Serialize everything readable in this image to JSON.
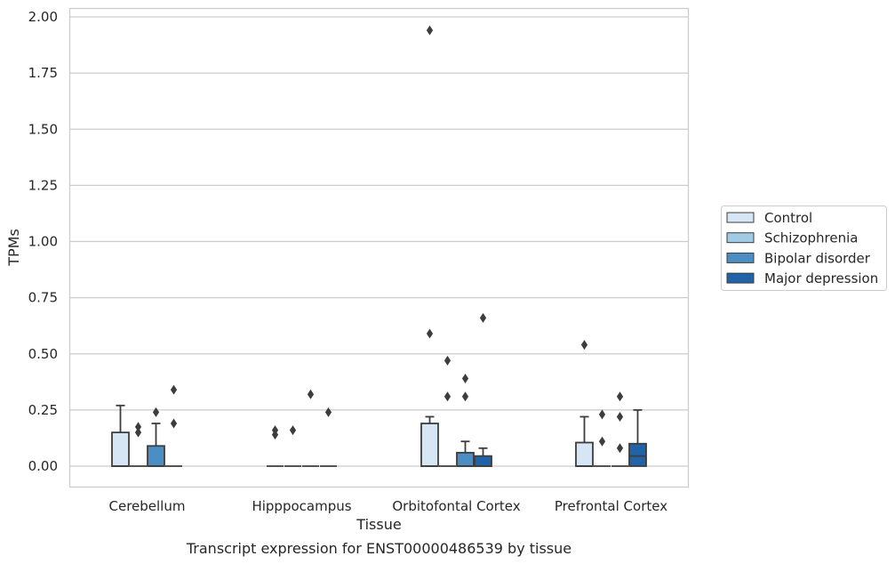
{
  "chart_data": {
    "type": "box",
    "title": "Transcript expression for ENST00000486539 by tissue",
    "xlabel": "Tissue",
    "ylabel": "TPMs",
    "ylim": [
      -0.09,
      2.04
    ],
    "yticks": [
      0.0,
      0.25,
      0.5,
      0.75,
      1.0,
      1.25,
      1.5,
      1.75,
      2.0
    ],
    "ytick_labels": [
      "0.00",
      "0.25",
      "0.50",
      "0.75",
      "1.00",
      "1.25",
      "1.50",
      "1.75",
      "2.00"
    ],
    "grid": true,
    "legend_position": "right",
    "categories": [
      "Cerebellum",
      "Hipppocampus",
      "Orbitofontal Cortex",
      "Prefrontal Cortex"
    ],
    "series": [
      {
        "name": "Control",
        "color": "#d6e6f4",
        "boxes": [
          {
            "q1": 0.0,
            "median": 0.0,
            "q3": 0.15,
            "whisker_low": 0.0,
            "whisker_high": 0.27,
            "outliers": []
          },
          {
            "q1": 0.0,
            "median": 0.0,
            "q3": 0.0,
            "whisker_low": 0.0,
            "whisker_high": 0.0,
            "outliers": [
              0.14,
              0.16
            ]
          },
          {
            "q1": 0.0,
            "median": 0.0,
            "q3": 0.19,
            "whisker_low": 0.0,
            "whisker_high": 0.22,
            "outliers": [
              0.59,
              1.94
            ]
          },
          {
            "q1": 0.0,
            "median": 0.0,
            "q3": 0.105,
            "whisker_low": 0.0,
            "whisker_high": 0.22,
            "outliers": [
              0.54
            ]
          }
        ]
      },
      {
        "name": "Schizophrenia",
        "color": "#a0cbe3",
        "boxes": [
          {
            "q1": 0.0,
            "median": 0.0,
            "q3": 0.0,
            "whisker_low": 0.0,
            "whisker_high": 0.0,
            "outliers": [
              0.15,
              0.175
            ]
          },
          {
            "q1": 0.0,
            "median": 0.0,
            "q3": 0.0,
            "whisker_low": 0.0,
            "whisker_high": 0.0,
            "outliers": [
              0.16
            ]
          },
          {
            "q1": 0.0,
            "median": 0.0,
            "q3": 0.0,
            "whisker_low": 0.0,
            "whisker_high": 0.0,
            "outliers": [
              0.31,
              0.47
            ]
          },
          {
            "q1": 0.0,
            "median": 0.0,
            "q3": 0.0,
            "whisker_low": 0.0,
            "whisker_high": 0.0,
            "outliers": [
              0.11,
              0.23
            ]
          }
        ]
      },
      {
        "name": "Bipolar disorder",
        "color": "#4a8ec4",
        "boxes": [
          {
            "q1": 0.0,
            "median": 0.0,
            "q3": 0.09,
            "whisker_low": 0.0,
            "whisker_high": 0.19,
            "outliers": [
              0.24
            ]
          },
          {
            "q1": 0.0,
            "median": 0.0,
            "q3": 0.0,
            "whisker_low": 0.0,
            "whisker_high": 0.0,
            "outliers": [
              0.32
            ]
          },
          {
            "q1": 0.0,
            "median": 0.0,
            "q3": 0.06,
            "whisker_low": 0.0,
            "whisker_high": 0.11,
            "outliers": [
              0.31,
              0.39
            ]
          },
          {
            "q1": 0.0,
            "median": 0.0,
            "q3": 0.0,
            "whisker_low": 0.0,
            "whisker_high": 0.0,
            "outliers": [
              0.08,
              0.22,
              0.31
            ]
          }
        ]
      },
      {
        "name": "Major depression",
        "color": "#2063a8",
        "boxes": [
          {
            "q1": 0.0,
            "median": 0.0,
            "q3": 0.0,
            "whisker_low": 0.0,
            "whisker_high": 0.0,
            "outliers": [
              0.19,
              0.34
            ]
          },
          {
            "q1": 0.0,
            "median": 0.0,
            "q3": 0.0,
            "whisker_low": 0.0,
            "whisker_high": 0.0,
            "outliers": [
              0.24
            ]
          },
          {
            "q1": 0.0,
            "median": 0.0,
            "q3": 0.045,
            "whisker_low": 0.0,
            "whisker_high": 0.08,
            "outliers": [
              0.66
            ]
          },
          {
            "q1": 0.0,
            "median": 0.045,
            "q3": 0.1,
            "whisker_low": 0.0,
            "whisker_high": 0.25,
            "outliers": []
          }
        ]
      }
    ]
  }
}
